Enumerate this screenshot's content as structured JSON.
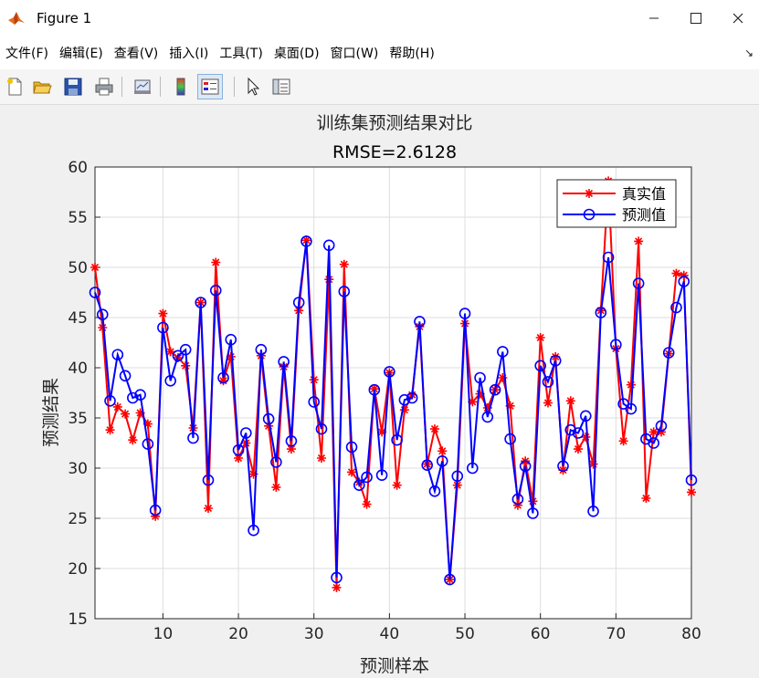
{
  "window": {
    "title": "Figure 1"
  },
  "menu": [
    "文件(F)",
    "编辑(E)",
    "查看(V)",
    "插入(I)",
    "工具(T)",
    "桌面(D)",
    "窗口(W)",
    "帮助(H)"
  ],
  "toolbar": [
    {
      "name": "new-figure-icon"
    },
    {
      "name": "open-file-icon"
    },
    {
      "name": "save-icon"
    },
    {
      "name": "print-icon"
    },
    {
      "name": "link-plot-icon"
    },
    {
      "name": "insert-colorbar-icon"
    },
    {
      "name": "insert-legend-icon"
    },
    {
      "name": "pointer-icon"
    },
    {
      "name": "property-inspector-icon"
    }
  ],
  "chart_data": {
    "type": "line",
    "title": "训练集预测结果对比",
    "subtitle": "RMSE=2.6128",
    "xlabel": "预测样本",
    "ylabel": "预测结果",
    "xlim": [
      1,
      80
    ],
    "ylim": [
      15,
      60
    ],
    "xticks": [
      10,
      20,
      30,
      40,
      50,
      60,
      70,
      80
    ],
    "yticks": [
      15,
      20,
      25,
      30,
      35,
      40,
      45,
      50,
      55,
      60
    ],
    "grid": true,
    "legend_position": "top-right",
    "x": [
      1,
      2,
      3,
      4,
      5,
      6,
      7,
      8,
      9,
      10,
      11,
      12,
      13,
      14,
      15,
      16,
      17,
      18,
      19,
      20,
      21,
      22,
      23,
      24,
      25,
      26,
      27,
      28,
      29,
      30,
      31,
      32,
      33,
      34,
      35,
      36,
      37,
      38,
      39,
      40,
      41,
      42,
      43,
      44,
      45,
      46,
      47,
      48,
      49,
      50,
      51,
      52,
      53,
      54,
      55,
      56,
      57,
      58,
      59,
      60,
      61,
      62,
      63,
      64,
      65,
      66,
      67,
      68,
      69,
      70,
      71,
      72,
      73,
      74,
      75,
      76,
      77,
      78,
      79,
      80
    ],
    "series": [
      {
        "name": "真实值",
        "color": "#ff0000",
        "marker": "*",
        "values": [
          50.0,
          44.0,
          33.8,
          36.1,
          35.4,
          32.8,
          35.5,
          34.4,
          25.2,
          45.4,
          41.6,
          41.0,
          40.2,
          34.0,
          46.5,
          26.0,
          50.5,
          38.7,
          41.1,
          31.0,
          32.5,
          29.4,
          41.2,
          34.2,
          28.1,
          40.1,
          31.9,
          45.7,
          52.7,
          38.8,
          31.0,
          48.8,
          18.1,
          50.3,
          29.6,
          28.6,
          26.4,
          37.9,
          33.6,
          39.5,
          28.3,
          35.8,
          37.3,
          44.1,
          30.4,
          33.9,
          31.7,
          18.9,
          28.3,
          44.4,
          36.6,
          37.4,
          36.0,
          37.8,
          39.0,
          36.2,
          26.3,
          30.7,
          26.7,
          43.0,
          36.5,
          41.1,
          29.8,
          36.7,
          31.9,
          33.1,
          30.4,
          45.7,
          58.6,
          41.9,
          32.7,
          38.3,
          52.6,
          27.0,
          33.6,
          33.6,
          41.4,
          49.4,
          49.2,
          27.6
        ]
      },
      {
        "name": "预测值",
        "color": "#0000ff",
        "marker": "o",
        "values": [
          47.5,
          45.3,
          36.7,
          41.3,
          39.2,
          37.0,
          37.3,
          32.4,
          25.8,
          44.0,
          38.7,
          41.2,
          41.8,
          33.0,
          46.5,
          28.8,
          47.7,
          39.0,
          42.8,
          31.8,
          33.5,
          23.8,
          41.8,
          34.9,
          30.6,
          40.6,
          32.7,
          46.5,
          52.6,
          36.6,
          33.9,
          52.2,
          19.1,
          47.6,
          32.1,
          28.3,
          29.1,
          37.8,
          29.3,
          39.6,
          32.8,
          36.8,
          37.0,
          44.6,
          30.3,
          27.7,
          30.7,
          18.9,
          29.2,
          45.4,
          30.0,
          39.0,
          35.1,
          37.8,
          41.6,
          32.9,
          26.9,
          30.2,
          25.5,
          40.2,
          38.6,
          40.7,
          30.2,
          33.8,
          33.5,
          35.2,
          25.7,
          45.5,
          51.0,
          42.3,
          36.4,
          35.9,
          48.4,
          32.9,
          32.5,
          34.2,
          41.5,
          46.0,
          48.6,
          28.8
        ]
      }
    ]
  }
}
